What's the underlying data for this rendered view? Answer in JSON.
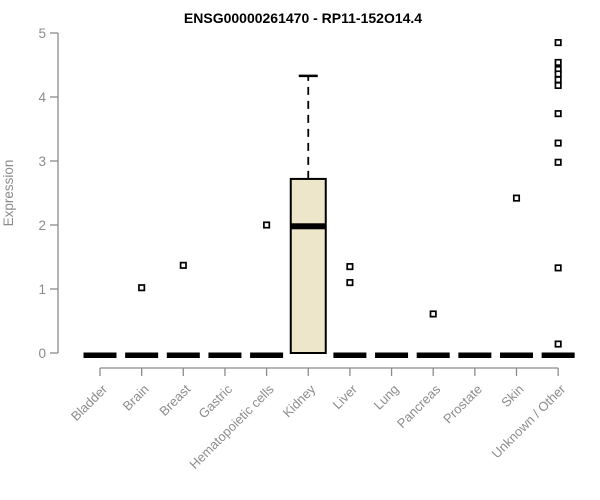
{
  "chart_data": {
    "type": "boxplot",
    "title": "ENSG00000261470 - RP11-152O14.4",
    "xlabel": "",
    "ylabel": "Expression",
    "ylim": [
      0,
      5
    ],
    "yticks": [
      0,
      1,
      2,
      3,
      4,
      5
    ],
    "grid": false,
    "legend": "none",
    "marker": "open-square",
    "categories": [
      "Bladder",
      "Brain",
      "Breast",
      "Gastric",
      "Hematopoietic cells",
      "Kidney",
      "Liver",
      "Lung",
      "Pancreas",
      "Prostate",
      "Skin",
      "Unknown / Other"
    ],
    "boxes": [
      {
        "category": "Bladder",
        "low": 0,
        "q1": 0,
        "median": 0,
        "q3": 0,
        "high": 0,
        "outliers": []
      },
      {
        "category": "Brain",
        "low": 0,
        "q1": 0,
        "median": 0,
        "q3": 0,
        "high": 0,
        "outliers": [
          1.02
        ]
      },
      {
        "category": "Breast",
        "low": 0,
        "q1": 0,
        "median": 0,
        "q3": 0,
        "high": 0,
        "outliers": [
          1.37
        ]
      },
      {
        "category": "Gastric",
        "low": 0,
        "q1": 0,
        "median": 0,
        "q3": 0,
        "high": 0,
        "outliers": []
      },
      {
        "category": "Hematopoietic cells",
        "low": 0,
        "q1": 0,
        "median": 0,
        "q3": 0,
        "high": 0,
        "outliers": [
          2.0
        ]
      },
      {
        "category": "Kidney",
        "low": 0,
        "q1": 0,
        "median": 1.98,
        "q3": 2.72,
        "high": 4.33,
        "outliers": []
      },
      {
        "category": "Liver",
        "low": 0,
        "q1": 0,
        "median": 0,
        "q3": 0,
        "high": 0,
        "outliers": [
          1.35,
          1.1
        ]
      },
      {
        "category": "Lung",
        "low": 0,
        "q1": 0,
        "median": 0,
        "q3": 0,
        "high": 0,
        "outliers": []
      },
      {
        "category": "Pancreas",
        "low": 0,
        "q1": 0,
        "median": 0,
        "q3": 0,
        "high": 0,
        "outliers": [
          0.61
        ]
      },
      {
        "category": "Prostate",
        "low": 0,
        "q1": 0,
        "median": 0,
        "q3": 0,
        "high": 0,
        "outliers": []
      },
      {
        "category": "Skin",
        "low": 0,
        "q1": 0,
        "median": 0,
        "q3": 0,
        "high": 0,
        "outliers": [
          2.42
        ]
      },
      {
        "category": "Unknown / Other",
        "low": 0,
        "q1": 0,
        "median": 0,
        "q3": 0,
        "high": 0,
        "outliers": [
          4.85,
          4.54,
          4.43,
          4.36,
          4.27,
          4.18,
          3.74,
          3.28,
          2.98,
          1.33,
          0.14
        ]
      }
    ],
    "colors": {
      "background": "#FFFFFF",
      "box_fill": "#EDE6CA",
      "box_stroke": "#000000",
      "median": "#000000",
      "whisker": "#000000",
      "outlier_stroke": "#000000",
      "outlier_fill": "#FFFFFF",
      "axis": "#8C8C8C",
      "tick_label": "#8C8C8C",
      "title": "#000000"
    }
  }
}
